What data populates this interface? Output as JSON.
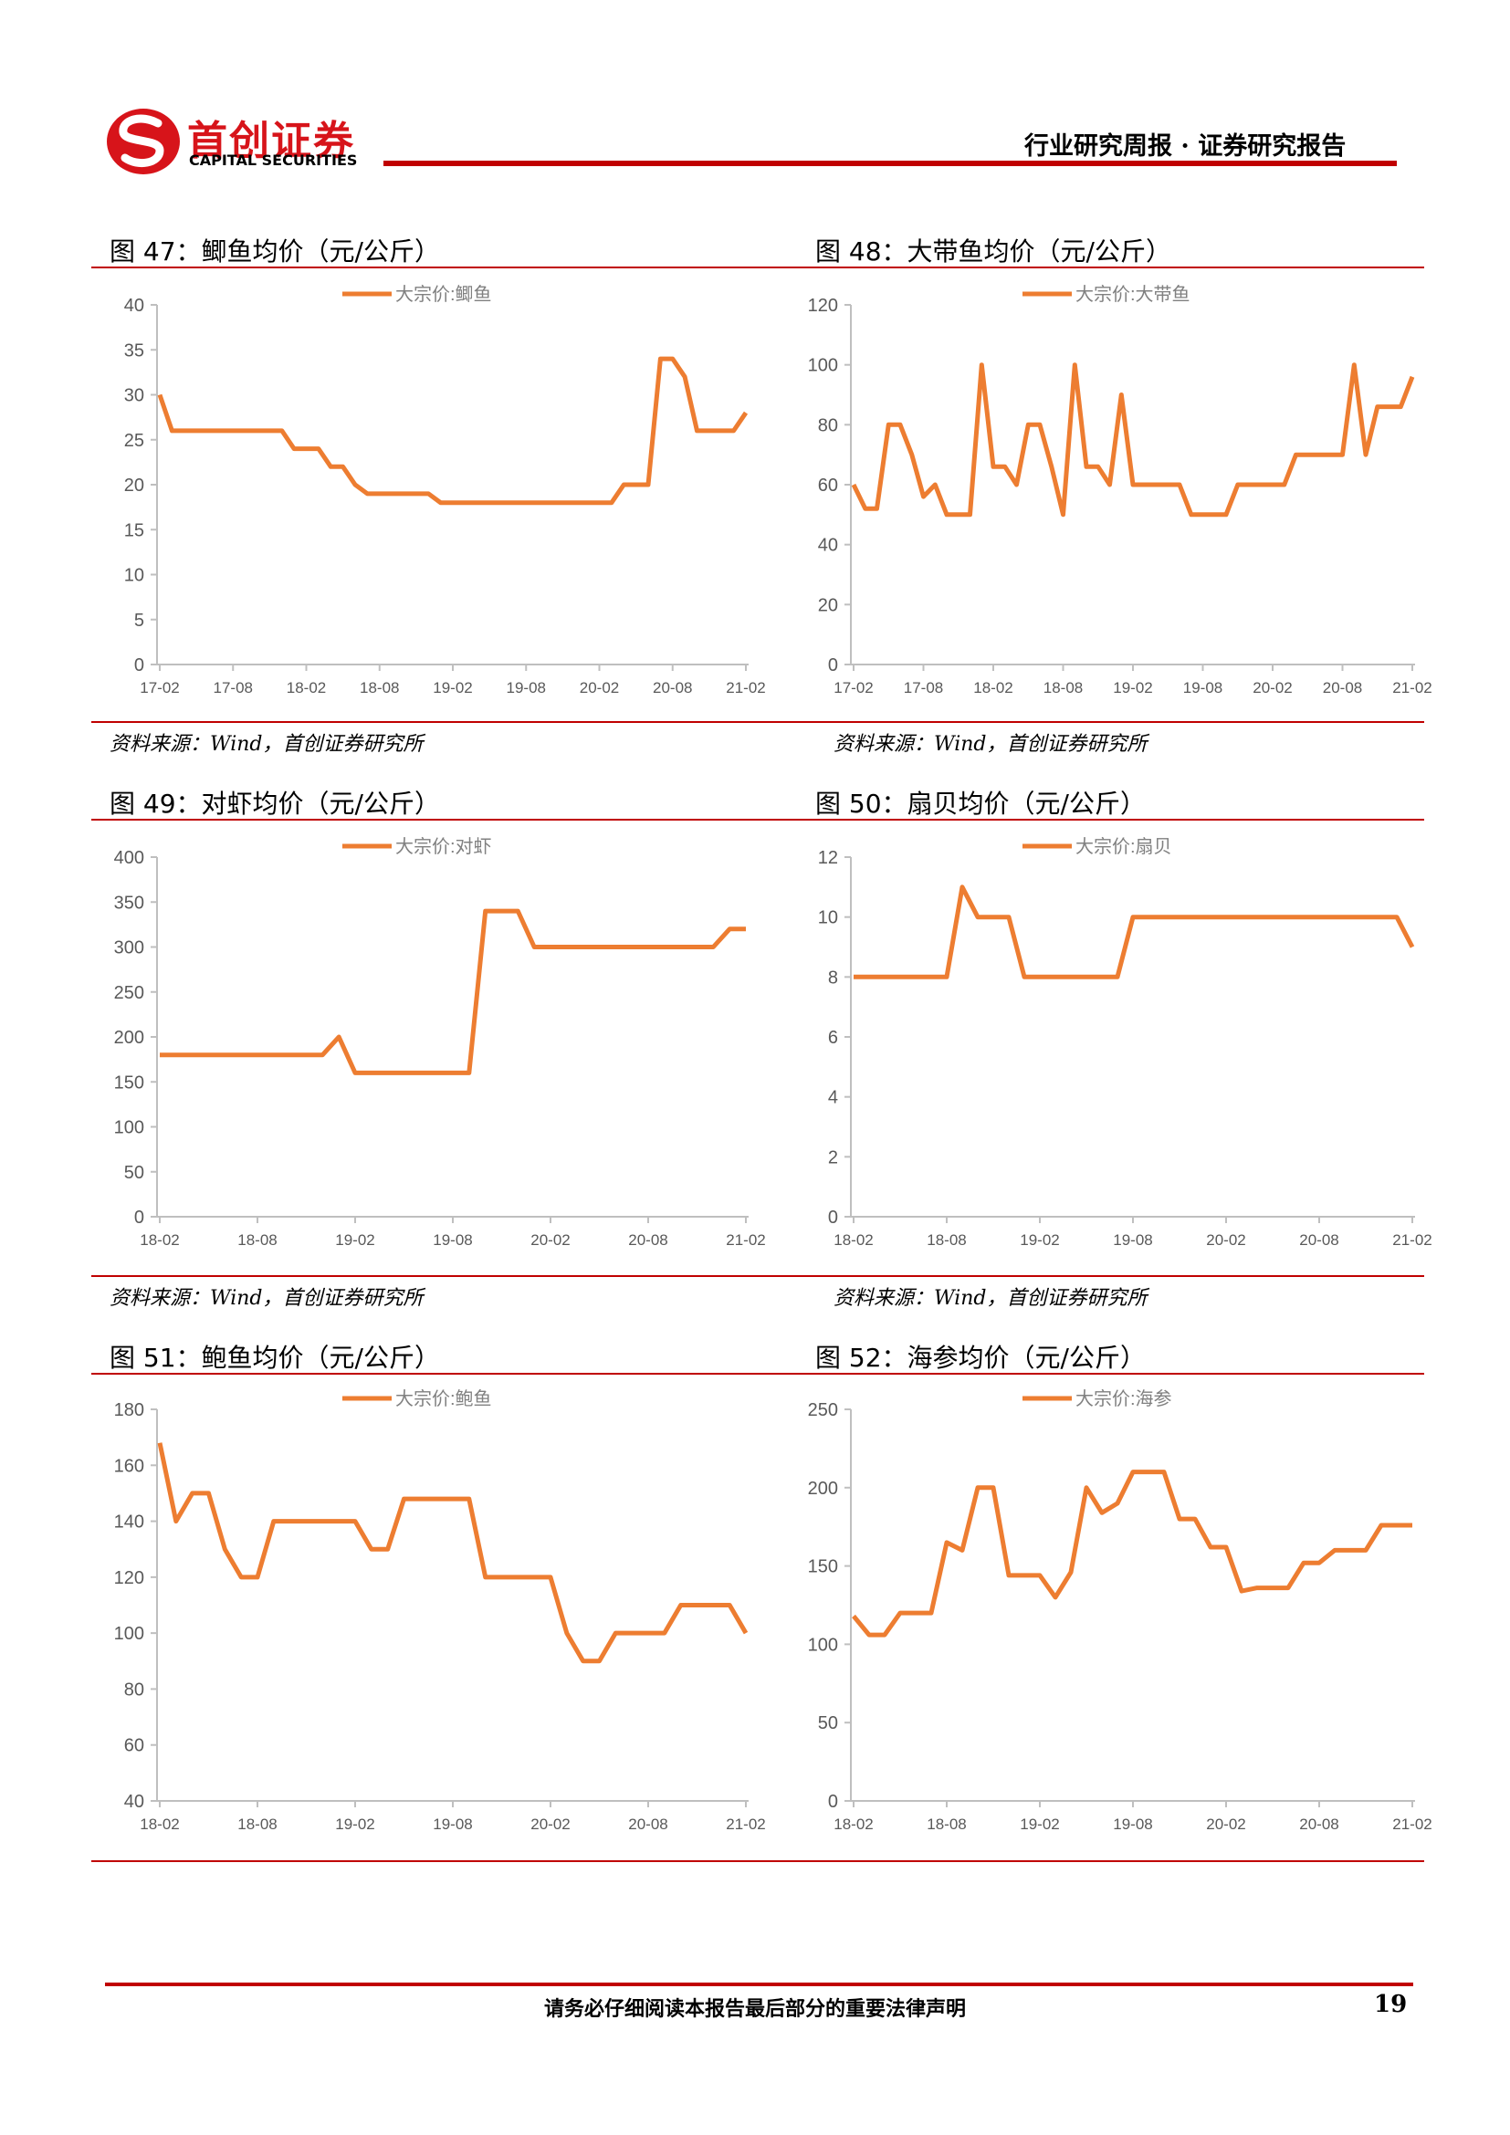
{
  "header": {
    "logo_name": "首创证券",
    "logo_subtitle": "CAPITAL SECURITIES",
    "report_type": "行业研究周报 · 证券研究报告"
  },
  "chart_data": [
    {
      "type": "line",
      "title": "图 47：鲫鱼均价（元/公斤）",
      "source": "资料来源：Wind，首创证券研究所",
      "categories": [
        "17-02",
        null,
        null,
        null,
        null,
        null,
        "17-08",
        null,
        null,
        null,
        null,
        null,
        "18-02",
        null,
        null,
        null,
        null,
        null,
        "18-08",
        null,
        null,
        null,
        null,
        null,
        "19-02",
        null,
        null,
        null,
        null,
        null,
        "19-08",
        null,
        null,
        null,
        null,
        null,
        "20-02",
        null,
        null,
        null,
        null,
        null,
        "20-08",
        null,
        null,
        null,
        null,
        null,
        "21-02"
      ],
      "series": [
        {
          "name": "大宗价:鲫鱼",
          "color": "#ed7d31",
          "values": [
            30,
            26,
            26,
            26,
            26,
            26,
            26,
            26,
            26,
            26,
            26,
            24,
            24,
            24,
            22,
            22,
            20,
            19,
            19,
            19,
            19,
            19,
            19,
            18,
            18,
            18,
            18,
            18,
            18,
            18,
            18,
            18,
            18,
            18,
            18,
            18,
            18,
            18,
            20,
            20,
            20,
            34,
            34,
            32,
            26,
            26,
            26,
            26,
            28
          ]
        }
      ],
      "ylim": [
        0,
        40
      ],
      "yticks": [
        0,
        5,
        10,
        15,
        20,
        25,
        30,
        35,
        40
      ]
    },
    {
      "type": "line",
      "title": "图 48：大带鱼均价（元/公斤）",
      "source": "资料来源：Wind，首创证券研究所",
      "categories": [
        "17-02",
        null,
        null,
        null,
        null,
        null,
        "17-08",
        null,
        null,
        null,
        null,
        null,
        "18-02",
        null,
        null,
        null,
        null,
        null,
        "18-08",
        null,
        null,
        null,
        null,
        null,
        "19-02",
        null,
        null,
        null,
        null,
        null,
        "19-08",
        null,
        null,
        null,
        null,
        null,
        "20-02",
        null,
        null,
        null,
        null,
        null,
        "20-08",
        null,
        null,
        null,
        null,
        null,
        "21-02"
      ],
      "series": [
        {
          "name": "大宗价:大带鱼",
          "color": "#ed7d31",
          "values": [
            60,
            52,
            52,
            80,
            80,
            70,
            56,
            60,
            50,
            50,
            50,
            100,
            66,
            66,
            60,
            80,
            80,
            66,
            50,
            100,
            66,
            66,
            60,
            90,
            60,
            60,
            60,
            60,
            60,
            50,
            50,
            50,
            50,
            60,
            60,
            60,
            60,
            60,
            70,
            70,
            70,
            70,
            70,
            100,
            70,
            86,
            86,
            86,
            96
          ]
        }
      ],
      "ylim": [
        0,
        120
      ],
      "yticks": [
        0,
        20,
        40,
        60,
        80,
        100,
        120
      ]
    },
    {
      "type": "line",
      "title": "图 49：对虾均价（元/公斤）",
      "source": "资料来源：Wind，首创证券研究所",
      "categories": [
        "18-02",
        null,
        null,
        null,
        null,
        null,
        "18-08",
        null,
        null,
        null,
        null,
        null,
        "19-02",
        null,
        null,
        null,
        null,
        null,
        "19-08",
        null,
        null,
        null,
        null,
        null,
        "20-02",
        null,
        null,
        null,
        null,
        null,
        "20-08",
        null,
        null,
        null,
        null,
        null,
        "21-02"
      ],
      "series": [
        {
          "name": "大宗价:对虾",
          "color": "#ed7d31",
          "values": [
            180,
            180,
            180,
            180,
            180,
            180,
            180,
            180,
            180,
            180,
            180,
            200,
            160,
            160,
            160,
            160,
            160,
            160,
            160,
            160,
            340,
            340,
            340,
            300,
            300,
            300,
            300,
            300,
            300,
            300,
            300,
            300,
            300,
            300,
            300,
            320,
            320
          ]
        }
      ],
      "ylim": [
        0,
        400
      ],
      "yticks": [
        0,
        50,
        100,
        150,
        200,
        250,
        300,
        350,
        400
      ]
    },
    {
      "type": "line",
      "title": "图 50：扇贝均价（元/公斤）",
      "source": "资料来源：Wind，首创证券研究所",
      "categories": [
        "18-02",
        null,
        null,
        null,
        null,
        null,
        "18-08",
        null,
        null,
        null,
        null,
        null,
        "19-02",
        null,
        null,
        null,
        null,
        null,
        "19-08",
        null,
        null,
        null,
        null,
        null,
        "20-02",
        null,
        null,
        null,
        null,
        null,
        "20-08",
        null,
        null,
        null,
        null,
        null,
        "21-02"
      ],
      "series": [
        {
          "name": "大宗价:扇贝",
          "color": "#ed7d31",
          "values": [
            8,
            8,
            8,
            8,
            8,
            8,
            8,
            11,
            10,
            10,
            10,
            8,
            8,
            8,
            8,
            8,
            8,
            8,
            10,
            10,
            10,
            10,
            10,
            10,
            10,
            10,
            10,
            10,
            10,
            10,
            10,
            10,
            10,
            10,
            10,
            10,
            9
          ]
        }
      ],
      "ylim": [
        0,
        12
      ],
      "yticks": [
        0,
        2,
        4,
        6,
        8,
        10,
        12
      ]
    },
    {
      "type": "line",
      "title": "图 51：鲍鱼均价（元/公斤）",
      "categories": [
        "18-02",
        null,
        null,
        null,
        null,
        null,
        "18-08",
        null,
        null,
        null,
        null,
        null,
        "19-02",
        null,
        null,
        null,
        null,
        null,
        "19-08",
        null,
        null,
        null,
        null,
        null,
        "20-02",
        null,
        null,
        null,
        null,
        null,
        "20-08",
        null,
        null,
        null,
        null,
        null,
        "21-02"
      ],
      "series": [
        {
          "name": "大宗价:鲍鱼",
          "color": "#ed7d31",
          "values": [
            168,
            140,
            150,
            150,
            130,
            120,
            120,
            140,
            140,
            140,
            140,
            140,
            140,
            130,
            130,
            148,
            148,
            148,
            148,
            148,
            120,
            120,
            120,
            120,
            120,
            100,
            90,
            90,
            100,
            100,
            100,
            100,
            110,
            110,
            110,
            110,
            100
          ]
        }
      ],
      "ylim": [
        40,
        180
      ],
      "yticks": [
        40,
        60,
        80,
        100,
        120,
        140,
        160,
        180
      ]
    },
    {
      "type": "line",
      "title": "图 52：海参均价（元/公斤）",
      "categories": [
        "18-02",
        null,
        null,
        null,
        null,
        null,
        "18-08",
        null,
        null,
        null,
        null,
        null,
        "19-02",
        null,
        null,
        null,
        null,
        null,
        "19-08",
        null,
        null,
        null,
        null,
        null,
        "20-02",
        null,
        null,
        null,
        null,
        null,
        "20-08",
        null,
        null,
        null,
        null,
        null,
        "21-02"
      ],
      "series": [
        {
          "name": "大宗价:海参",
          "color": "#ed7d31",
          "values": [
            118,
            106,
            106,
            120,
            120,
            120,
            165,
            160,
            200,
            200,
            144,
            144,
            144,
            130,
            146,
            200,
            184,
            190,
            210,
            210,
            210,
            180,
            180,
            162,
            162,
            134,
            136,
            136,
            136,
            152,
            152,
            160,
            160,
            160,
            176,
            176,
            176
          ]
        }
      ],
      "ylim": [
        0,
        250
      ],
      "yticks": [
        0,
        50,
        100,
        150,
        200,
        250
      ]
    }
  ],
  "footer": {
    "disclaimer": "请务必仔细阅读本报告最后部分的重要法律声明",
    "page": 19
  }
}
